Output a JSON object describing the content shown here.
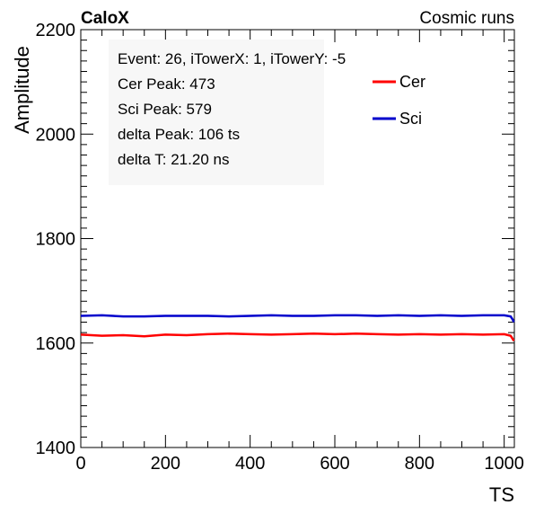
{
  "header": {
    "left_label": "CaloX",
    "right_label": "Cosmic runs"
  },
  "info_box": {
    "lines": [
      "Event: 26, iTowerX: 1, iTowerY: -5",
      "Cer Peak: 473",
      "Sci Peak: 579",
      "delta Peak: 106 ts",
      "delta T:  21.20 ns"
    ]
  },
  "chart_data": {
    "type": "line",
    "xlabel": "TS",
    "ylabel": "Amplitude",
    "xlim": [
      0,
      1024
    ],
    "ylim": [
      1400,
      2200
    ],
    "x_ticks": [
      0,
      200,
      400,
      600,
      800,
      1000
    ],
    "y_ticks": [
      1400,
      1600,
      1800,
      2000,
      2200
    ],
    "grid": false,
    "legend_placement": "top-right",
    "colors": {
      "Cer": "#ff0000",
      "Sci": "#0000cc"
    },
    "series": [
      {
        "name": "Cer",
        "x": [
          0,
          50,
          100,
          150,
          200,
          250,
          300,
          350,
          400,
          450,
          500,
          550,
          600,
          650,
          700,
          750,
          800,
          850,
          900,
          950,
          1000,
          1015,
          1020,
          1023
        ],
        "y": [
          1616,
          1614,
          1615,
          1613,
          1616,
          1615,
          1617,
          1618,
          1617,
          1616,
          1617,
          1618,
          1617,
          1618,
          1617,
          1616,
          1617,
          1616,
          1617,
          1616,
          1617,
          1614,
          1608,
          1604
        ]
      },
      {
        "name": "Sci",
        "x": [
          0,
          50,
          100,
          150,
          200,
          250,
          300,
          350,
          400,
          450,
          500,
          550,
          600,
          650,
          700,
          750,
          800,
          850,
          900,
          950,
          1000,
          1015,
          1020,
          1023
        ],
        "y": [
          1652,
          1653,
          1651,
          1651,
          1652,
          1652,
          1652,
          1651,
          1652,
          1653,
          1652,
          1652,
          1653,
          1653,
          1652,
          1653,
          1652,
          1653,
          1652,
          1653,
          1653,
          1651,
          1645,
          1640
        ]
      }
    ]
  }
}
